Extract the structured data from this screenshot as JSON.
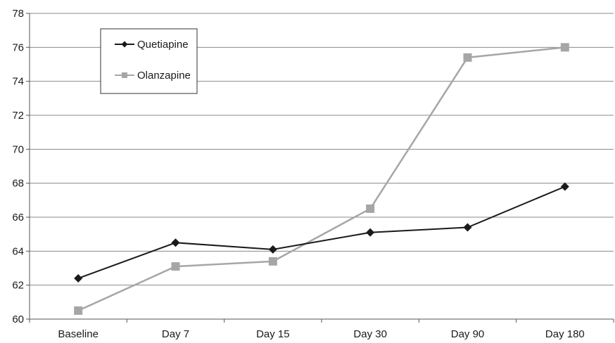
{
  "chart_data": {
    "type": "line",
    "categories": [
      "Baseline",
      "Day 7",
      "Day 15",
      "Day 30",
      "Day 90",
      "Day 180"
    ],
    "series": [
      {
        "name": "Quetiapine",
        "values": [
          62.4,
          64.5,
          64.1,
          65.1,
          65.4,
          67.8
        ],
        "color": "#1a1a1a",
        "marker": "diamond"
      },
      {
        "name": "Olanzapine",
        "values": [
          60.5,
          63.1,
          63.4,
          66.5,
          75.4,
          76.0
        ],
        "color": "#a6a6a6",
        "marker": "square"
      }
    ],
    "ylim": [
      60,
      78
    ],
    "yticks": [
      60,
      62,
      64,
      66,
      68,
      70,
      72,
      74,
      76,
      78
    ],
    "grid": true,
    "legend_position": "top-left"
  }
}
